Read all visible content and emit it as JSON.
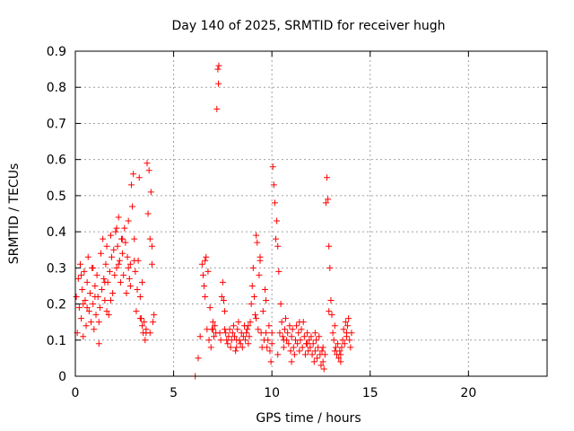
{
  "chart_data": {
    "type": "scatter",
    "title": "Day 140 of 2025, SRMTID for receiver hugh",
    "xlabel": "GPS time / hours",
    "ylabel": "SRMTID / TECUs",
    "xlim": [
      0,
      24
    ],
    "ylim": [
      0,
      0.9
    ],
    "x_ticks": [
      0,
      5,
      10,
      15,
      20
    ],
    "y_ticks": [
      0,
      0.1,
      0.2,
      0.3,
      0.4,
      0.5,
      0.6,
      0.7,
      0.8,
      0.9
    ],
    "x_tick_labels": [
      "0",
      "5",
      "10",
      "15",
      "20"
    ],
    "y_tick_labels": [
      "0",
      "0.1",
      "0.2",
      "0.3",
      "0.4",
      "0.5",
      "0.6",
      "0.7",
      "0.8",
      "0.9"
    ],
    "grid": true,
    "marker": "+",
    "color": "#ff0000",
    "series": [
      {
        "name": "SRMTID",
        "points": [
          [
            0.05,
            0.22
          ],
          [
            0.1,
            0.12
          ],
          [
            0.15,
            0.27
          ],
          [
            0.2,
            0.19
          ],
          [
            0.25,
            0.31
          ],
          [
            0.3,
            0.16
          ],
          [
            0.35,
            0.24
          ],
          [
            0.4,
            0.11
          ],
          [
            0.45,
            0.29
          ],
          [
            0.5,
            0.21
          ],
          [
            0.55,
            0.14
          ],
          [
            0.6,
            0.26
          ],
          [
            0.65,
            0.33
          ],
          [
            0.7,
            0.18
          ],
          [
            0.75,
            0.23
          ],
          [
            0.8,
            0.15
          ],
          [
            0.85,
            0.3
          ],
          [
            0.9,
            0.2
          ],
          [
            0.95,
            0.13
          ],
          [
            1.0,
            0.25
          ],
          [
            1.05,
            0.17
          ],
          [
            1.1,
            0.28
          ],
          [
            1.15,
            0.22
          ],
          [
            1.2,
            0.09
          ],
          [
            1.25,
            0.19
          ],
          [
            1.3,
            0.34
          ],
          [
            1.35,
            0.24
          ],
          [
            1.4,
            0.38
          ],
          [
            1.45,
            0.27
          ],
          [
            1.5,
            0.21
          ],
          [
            1.55,
            0.31
          ],
          [
            1.6,
            0.36
          ],
          [
            1.65,
            0.26
          ],
          [
            1.7,
            0.17
          ],
          [
            1.75,
            0.29
          ],
          [
            1.8,
            0.39
          ],
          [
            1.85,
            0.33
          ],
          [
            1.9,
            0.23
          ],
          [
            1.95,
            0.35
          ],
          [
            2.0,
            0.28
          ],
          [
            2.05,
            0.4
          ],
          [
            2.1,
            0.3
          ],
          [
            2.15,
            0.36
          ],
          [
            2.2,
            0.44
          ],
          [
            2.25,
            0.32
          ],
          [
            2.3,
            0.26
          ],
          [
            2.35,
            0.38
          ],
          [
            2.4,
            0.34
          ],
          [
            2.45,
            0.28
          ],
          [
            2.5,
            0.41
          ],
          [
            2.55,
            0.37
          ],
          [
            2.6,
            0.23
          ],
          [
            2.65,
            0.33
          ],
          [
            2.7,
            0.43
          ],
          [
            2.75,
            0.27
          ],
          [
            2.8,
            0.31
          ],
          [
            2.85,
            0.53
          ],
          [
            2.9,
            0.47
          ],
          [
            2.95,
            0.56
          ],
          [
            3.0,
            0.38
          ],
          [
            3.05,
            0.29
          ],
          [
            3.1,
            0.18
          ],
          [
            3.15,
            0.24
          ],
          [
            3.2,
            0.32
          ],
          [
            3.25,
            0.55
          ],
          [
            3.3,
            0.22
          ],
          [
            3.35,
            0.16
          ],
          [
            3.4,
            0.26
          ],
          [
            3.45,
            0.12
          ],
          [
            3.5,
            0.15
          ],
          [
            3.55,
            0.1
          ],
          [
            3.6,
            0.13
          ],
          [
            3.65,
            0.59
          ],
          [
            3.7,
            0.45
          ],
          [
            3.75,
            0.57
          ],
          [
            3.8,
            0.38
          ],
          [
            3.85,
            0.51
          ],
          [
            3.9,
            0.31
          ],
          [
            3.95,
            0.15
          ],
          [
            4.0,
            0.17
          ],
          [
            0.3,
            0.28
          ],
          [
            0.6,
            0.19
          ],
          [
            0.9,
            0.3
          ],
          [
            1.2,
            0.15
          ],
          [
            1.5,
            0.26
          ],
          [
            1.8,
            0.21
          ],
          [
            2.1,
            0.41
          ],
          [
            2.4,
            0.38
          ],
          [
            2.7,
            0.3
          ],
          [
            3.0,
            0.32
          ],
          [
            3.3,
            0.16
          ],
          [
            3.6,
            0.12
          ],
          [
            3.9,
            0.36
          ],
          [
            0.4,
            0.2
          ],
          [
            1.0,
            0.22
          ],
          [
            1.6,
            0.18
          ],
          [
            2.2,
            0.31
          ],
          [
            2.8,
            0.25
          ],
          [
            3.4,
            0.14
          ],
          [
            3.8,
            0.12
          ],
          [
            6.1,
            0.0
          ],
          [
            6.25,
            0.05
          ],
          [
            6.35,
            0.11
          ],
          [
            6.45,
            0.31
          ],
          [
            6.5,
            0.28
          ],
          [
            6.55,
            0.25
          ],
          [
            6.6,
            0.22
          ],
          [
            6.65,
            0.33
          ],
          [
            6.7,
            0.13
          ],
          [
            6.75,
            0.29
          ],
          [
            6.8,
            0.1
          ],
          [
            6.85,
            0.19
          ],
          [
            6.9,
            0.08
          ],
          [
            6.95,
            0.13
          ],
          [
            7.0,
            0.15
          ],
          [
            7.05,
            0.11
          ],
          [
            7.1,
            0.14
          ],
          [
            7.15,
            0.12
          ],
          [
            7.2,
            0.74
          ],
          [
            7.25,
            0.85
          ],
          [
            7.28,
            0.81
          ],
          [
            7.3,
            0.86
          ],
          [
            7.35,
            0.12
          ],
          [
            7.4,
            0.1
          ],
          [
            7.45,
            0.22
          ],
          [
            7.5,
            0.26
          ],
          [
            7.55,
            0.21
          ],
          [
            7.6,
            0.18
          ],
          [
            7.65,
            0.12
          ],
          [
            7.7,
            0.1
          ],
          [
            7.75,
            0.09
          ],
          [
            7.8,
            0.11
          ],
          [
            7.85,
            0.13
          ],
          [
            7.9,
            0.08
          ],
          [
            7.95,
            0.1
          ],
          [
            8.0,
            0.12
          ],
          [
            8.05,
            0.14
          ],
          [
            8.1,
            0.11
          ],
          [
            8.15,
            0.07
          ],
          [
            8.2,
            0.1
          ],
          [
            8.25,
            0.13
          ],
          [
            8.3,
            0.15
          ],
          [
            8.35,
            0.1
          ],
          [
            8.4,
            0.09
          ],
          [
            8.45,
            0.12
          ],
          [
            8.5,
            0.08
          ],
          [
            8.55,
            0.11
          ],
          [
            8.6,
            0.14
          ],
          [
            8.65,
            0.1
          ],
          [
            8.7,
            0.12
          ],
          [
            8.75,
            0.13
          ],
          [
            8.8,
            0.09
          ],
          [
            8.85,
            0.11
          ],
          [
            8.9,
            0.15
          ],
          [
            8.95,
            0.2
          ],
          [
            9.0,
            0.25
          ],
          [
            9.05,
            0.3
          ],
          [
            9.1,
            0.22
          ],
          [
            9.15,
            0.17
          ],
          [
            9.2,
            0.39
          ],
          [
            9.25,
            0.37
          ],
          [
            9.3,
            0.13
          ],
          [
            9.35,
            0.28
          ],
          [
            9.4,
            0.33
          ],
          [
            9.45,
            0.12
          ],
          [
            9.5,
            0.08
          ],
          [
            9.55,
            0.18
          ],
          [
            9.6,
            0.1
          ],
          [
            9.65,
            0.24
          ],
          [
            9.7,
            0.12
          ],
          [
            9.75,
            0.08
          ],
          [
            9.8,
            0.1
          ],
          [
            9.85,
            0.14
          ],
          [
            9.9,
            0.07
          ],
          [
            9.95,
            0.04
          ],
          [
            10.0,
            0.09
          ],
          [
            10.05,
            0.58
          ],
          [
            10.1,
            0.53
          ],
          [
            10.15,
            0.48
          ],
          [
            10.2,
            0.38
          ],
          [
            10.25,
            0.43
          ],
          [
            10.3,
            0.36
          ],
          [
            10.35,
            0.29
          ],
          [
            10.4,
            0.12
          ],
          [
            10.45,
            0.2
          ],
          [
            10.5,
            0.15
          ],
          [
            10.55,
            0.11
          ],
          [
            10.6,
            0.08
          ],
          [
            10.65,
            0.13
          ],
          [
            10.7,
            0.16
          ],
          [
            10.75,
            0.1
          ],
          [
            10.8,
            0.12
          ],
          [
            10.85,
            0.09
          ],
          [
            10.9,
            0.14
          ],
          [
            10.95,
            0.07
          ],
          [
            11.0,
            0.11
          ],
          [
            11.05,
            0.13
          ],
          [
            11.1,
            0.08
          ],
          [
            11.15,
            0.06
          ],
          [
            11.2,
            0.1
          ],
          [
            11.25,
            0.14
          ],
          [
            11.3,
            0.09
          ],
          [
            11.35,
            0.12
          ],
          [
            11.4,
            0.07
          ],
          [
            11.45,
            0.1
          ],
          [
            11.5,
            0.13
          ],
          [
            11.55,
            0.08
          ],
          [
            11.6,
            0.15
          ],
          [
            11.65,
            0.11
          ],
          [
            11.7,
            0.06
          ],
          [
            11.75,
            0.09
          ],
          [
            11.8,
            0.12
          ],
          [
            11.85,
            0.07
          ],
          [
            11.9,
            0.1
          ],
          [
            11.95,
            0.08
          ],
          [
            12.0,
            0.11
          ],
          [
            12.05,
            0.06
          ],
          [
            12.1,
            0.09
          ],
          [
            12.15,
            0.04
          ],
          [
            12.2,
            0.07
          ],
          [
            12.25,
            0.1
          ],
          [
            12.3,
            0.05
          ],
          [
            12.35,
            0.08
          ],
          [
            12.4,
            0.11
          ],
          [
            12.45,
            0.06
          ],
          [
            12.5,
            0.03
          ],
          [
            12.55,
            0.07
          ],
          [
            12.6,
            0.04
          ],
          [
            12.65,
            0.02
          ],
          [
            12.7,
            0.06
          ],
          [
            12.75,
            0.48
          ],
          [
            12.8,
            0.55
          ],
          [
            12.85,
            0.49
          ],
          [
            12.9,
            0.36
          ],
          [
            12.95,
            0.3
          ],
          [
            13.0,
            0.21
          ],
          [
            13.05,
            0.17
          ],
          [
            13.1,
            0.12
          ],
          [
            13.15,
            0.1
          ],
          [
            13.2,
            0.14
          ],
          [
            13.25,
            0.08
          ],
          [
            13.3,
            0.06
          ],
          [
            13.35,
            0.09
          ],
          [
            13.4,
            0.05
          ],
          [
            13.45,
            0.07
          ],
          [
            13.5,
            0.04
          ],
          [
            13.55,
            0.08
          ],
          [
            13.6,
            0.1
          ],
          [
            13.65,
            0.13
          ],
          [
            13.7,
            0.09
          ],
          [
            13.75,
            0.15
          ],
          [
            13.8,
            0.11
          ],
          [
            13.85,
            0.14
          ],
          [
            13.9,
            0.16
          ],
          [
            13.95,
            0.1
          ],
          [
            14.0,
            0.08
          ],
          [
            14.05,
            0.12
          ],
          [
            9.7,
            0.21
          ],
          [
            10.0,
            0.12
          ],
          [
            10.3,
            0.06
          ],
          [
            10.6,
            0.1
          ],
          [
            11.0,
            0.04
          ],
          [
            11.4,
            0.15
          ],
          [
            11.8,
            0.09
          ],
          [
            12.2,
            0.12
          ],
          [
            12.6,
            0.08
          ],
          [
            12.9,
            0.18
          ],
          [
            13.2,
            0.07
          ],
          [
            13.5,
            0.06
          ],
          [
            13.8,
            0.12
          ],
          [
            6.6,
            0.32
          ],
          [
            7.0,
            0.13
          ],
          [
            7.6,
            0.13
          ],
          [
            8.2,
            0.08
          ],
          [
            8.8,
            0.14
          ],
          [
            9.2,
            0.16
          ],
          [
            9.4,
            0.32
          ]
        ]
      }
    ]
  }
}
